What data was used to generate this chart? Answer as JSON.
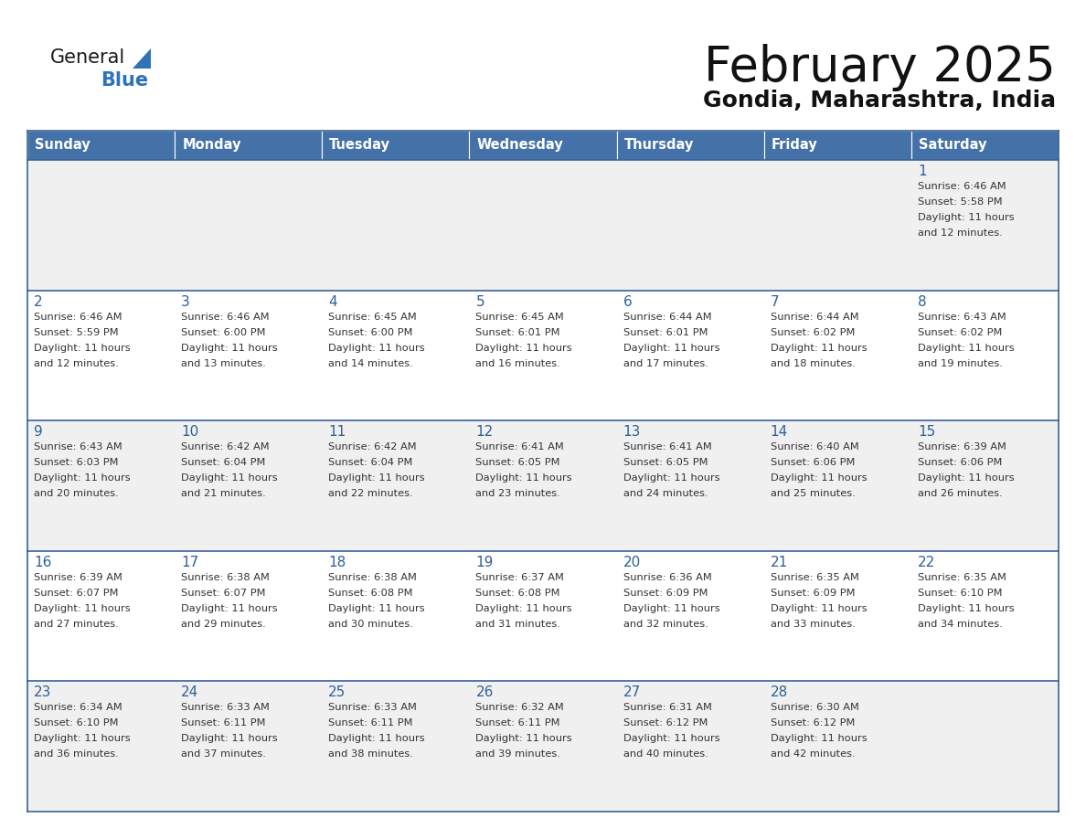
{
  "title": "February 2025",
  "subtitle": "Gondia, Maharashtra, India",
  "header_color": "#4472A8",
  "header_text_color": "#FFFFFF",
  "day_names": [
    "Sunday",
    "Monday",
    "Tuesday",
    "Wednesday",
    "Thursday",
    "Friday",
    "Saturday"
  ],
  "odd_row_color": "#F0F0F0",
  "even_row_color": "#FFFFFF",
  "cell_border_color": "#3A6096",
  "date_num_color": "#2E6096",
  "info_text_color": "#333333",
  "logo_general_color": "#1a1a1a",
  "logo_blue_color": "#2E73B8",
  "calendar": [
    [
      {
        "day": null,
        "sunrise": null,
        "sunset": null,
        "daylight": null
      },
      {
        "day": null,
        "sunrise": null,
        "sunset": null,
        "daylight": null
      },
      {
        "day": null,
        "sunrise": null,
        "sunset": null,
        "daylight": null
      },
      {
        "day": null,
        "sunrise": null,
        "sunset": null,
        "daylight": null
      },
      {
        "day": null,
        "sunrise": null,
        "sunset": null,
        "daylight": null
      },
      {
        "day": null,
        "sunrise": null,
        "sunset": null,
        "daylight": null
      },
      {
        "day": 1,
        "sunrise": "6:46 AM",
        "sunset": "5:58 PM",
        "daylight": "11 hours\nand 12 minutes."
      }
    ],
    [
      {
        "day": 2,
        "sunrise": "6:46 AM",
        "sunset": "5:59 PM",
        "daylight": "11 hours\nand 12 minutes."
      },
      {
        "day": 3,
        "sunrise": "6:46 AM",
        "sunset": "6:00 PM",
        "daylight": "11 hours\nand 13 minutes."
      },
      {
        "day": 4,
        "sunrise": "6:45 AM",
        "sunset": "6:00 PM",
        "daylight": "11 hours\nand 14 minutes."
      },
      {
        "day": 5,
        "sunrise": "6:45 AM",
        "sunset": "6:01 PM",
        "daylight": "11 hours\nand 16 minutes."
      },
      {
        "day": 6,
        "sunrise": "6:44 AM",
        "sunset": "6:01 PM",
        "daylight": "11 hours\nand 17 minutes."
      },
      {
        "day": 7,
        "sunrise": "6:44 AM",
        "sunset": "6:02 PM",
        "daylight": "11 hours\nand 18 minutes."
      },
      {
        "day": 8,
        "sunrise": "6:43 AM",
        "sunset": "6:02 PM",
        "daylight": "11 hours\nand 19 minutes."
      }
    ],
    [
      {
        "day": 9,
        "sunrise": "6:43 AM",
        "sunset": "6:03 PM",
        "daylight": "11 hours\nand 20 minutes."
      },
      {
        "day": 10,
        "sunrise": "6:42 AM",
        "sunset": "6:04 PM",
        "daylight": "11 hours\nand 21 minutes."
      },
      {
        "day": 11,
        "sunrise": "6:42 AM",
        "sunset": "6:04 PM",
        "daylight": "11 hours\nand 22 minutes."
      },
      {
        "day": 12,
        "sunrise": "6:41 AM",
        "sunset": "6:05 PM",
        "daylight": "11 hours\nand 23 minutes."
      },
      {
        "day": 13,
        "sunrise": "6:41 AM",
        "sunset": "6:05 PM",
        "daylight": "11 hours\nand 24 minutes."
      },
      {
        "day": 14,
        "sunrise": "6:40 AM",
        "sunset": "6:06 PM",
        "daylight": "11 hours\nand 25 minutes."
      },
      {
        "day": 15,
        "sunrise": "6:39 AM",
        "sunset": "6:06 PM",
        "daylight": "11 hours\nand 26 minutes."
      }
    ],
    [
      {
        "day": 16,
        "sunrise": "6:39 AM",
        "sunset": "6:07 PM",
        "daylight": "11 hours\nand 27 minutes."
      },
      {
        "day": 17,
        "sunrise": "6:38 AM",
        "sunset": "6:07 PM",
        "daylight": "11 hours\nand 29 minutes."
      },
      {
        "day": 18,
        "sunrise": "6:38 AM",
        "sunset": "6:08 PM",
        "daylight": "11 hours\nand 30 minutes."
      },
      {
        "day": 19,
        "sunrise": "6:37 AM",
        "sunset": "6:08 PM",
        "daylight": "11 hours\nand 31 minutes."
      },
      {
        "day": 20,
        "sunrise": "6:36 AM",
        "sunset": "6:09 PM",
        "daylight": "11 hours\nand 32 minutes."
      },
      {
        "day": 21,
        "sunrise": "6:35 AM",
        "sunset": "6:09 PM",
        "daylight": "11 hours\nand 33 minutes."
      },
      {
        "day": 22,
        "sunrise": "6:35 AM",
        "sunset": "6:10 PM",
        "daylight": "11 hours\nand 34 minutes."
      }
    ],
    [
      {
        "day": 23,
        "sunrise": "6:34 AM",
        "sunset": "6:10 PM",
        "daylight": "11 hours\nand 36 minutes."
      },
      {
        "day": 24,
        "sunrise": "6:33 AM",
        "sunset": "6:11 PM",
        "daylight": "11 hours\nand 37 minutes."
      },
      {
        "day": 25,
        "sunrise": "6:33 AM",
        "sunset": "6:11 PM",
        "daylight": "11 hours\nand 38 minutes."
      },
      {
        "day": 26,
        "sunrise": "6:32 AM",
        "sunset": "6:11 PM",
        "daylight": "11 hours\nand 39 minutes."
      },
      {
        "day": 27,
        "sunrise": "6:31 AM",
        "sunset": "6:12 PM",
        "daylight": "11 hours\nand 40 minutes."
      },
      {
        "day": 28,
        "sunrise": "6:30 AM",
        "sunset": "6:12 PM",
        "daylight": "11 hours\nand 42 minutes."
      },
      {
        "day": null,
        "sunrise": null,
        "sunset": null,
        "daylight": null
      }
    ]
  ]
}
